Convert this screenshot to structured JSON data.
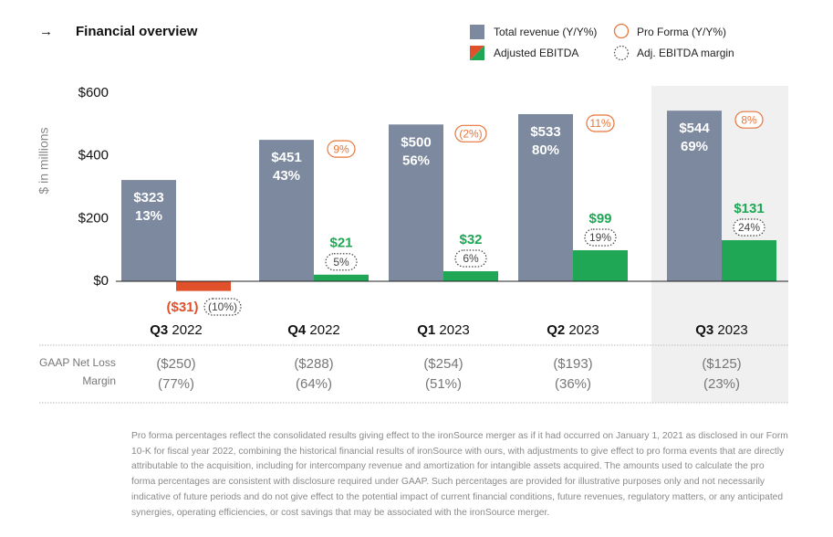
{
  "chart_data": {
    "type": "bar",
    "arrow": "→",
    "title": "Financial overview",
    "ylabel": "$ in millions",
    "categories": [
      {
        "quarter": "Q3",
        "year": "2022"
      },
      {
        "quarter": "Q4",
        "year": "2022"
      },
      {
        "quarter": "Q1",
        "year": "2023"
      },
      {
        "quarter": "Q2",
        "year": "2023"
      },
      {
        "quarter": "Q3",
        "year": "2023"
      }
    ],
    "highlight_category": 4,
    "ylim": [
      -40,
      620
    ],
    "yticks": [
      {
        "value": 0,
        "label": "$0"
      },
      {
        "value": 200,
        "label": "$200"
      },
      {
        "value": 400,
        "label": "$400"
      },
      {
        "value": 600,
        "label": "$600"
      }
    ],
    "series": [
      {
        "name": "Total revenue (Y/Y%)",
        "color": "#7d899f",
        "values": [
          323,
          451,
          500,
          533,
          544
        ],
        "value_labels": [
          "$323",
          "$451",
          "$500",
          "$533",
          "$544"
        ],
        "growth": [
          13,
          43,
          56,
          80,
          69
        ],
        "growth_labels": [
          "13%",
          "43%",
          "56%",
          "80%",
          "69%"
        ]
      },
      {
        "name": "Pro Forma (Y/Y%)",
        "color": "#e8763a",
        "values": [
          null,
          9,
          -2,
          11,
          8
        ],
        "value_labels": [
          null,
          "9%",
          "(2%)",
          "11%",
          "8%"
        ]
      },
      {
        "name": "Adjusted EBITDA",
        "color": "#1fa755",
        "negative_color": "#e0502a",
        "values": [
          -31,
          21,
          32,
          99,
          131
        ],
        "value_labels": [
          "($31)",
          "$21",
          "$32",
          "$99",
          "$131"
        ]
      },
      {
        "name": "Adj. EBITDA margin",
        "color": "#444444",
        "values": [
          -10,
          5,
          6,
          19,
          24
        ],
        "value_labels": [
          "(10%)",
          "5%",
          "6%",
          "19%",
          "24%"
        ]
      }
    ],
    "table": {
      "row_labels": [
        "GAAP Net Loss",
        "Margin"
      ],
      "net_loss": [
        -250,
        -288,
        -254,
        -193,
        -125
      ],
      "net_loss_labels": [
        "($250)",
        "($288)",
        "($254)",
        "($193)",
        "($125)"
      ],
      "margin": [
        -77,
        -64,
        -51,
        -36,
        -23
      ],
      "margin_labels": [
        "(77%)",
        "(64%)",
        "(51%)",
        "(36%)",
        "(23%)"
      ]
    },
    "footnote": "Pro forma percentages reflect the consolidated results giving effect to the ironSource merger as if it had occurred on January 1, 2021 as disclosed in our Form 10-K for fiscal year 2022, combining the historical financial results of ironSource with ours, with adjustments to give effect to pro forma events that are directly attributable to the acquisition, including for intercompany revenue and amortization for intangible assets acquired. The amounts used to calculate the pro forma percentages are consistent with disclosure required under GAAP. Such percentages are provided for illustrative purposes only and not necessarily indicative of future periods and do not give effect to the potential impact of current financial conditions, future revenues, regulatory matters, or any anticipated synergies, operating efficiencies, or cost savings that may be associated with the ironSource merger."
  }
}
